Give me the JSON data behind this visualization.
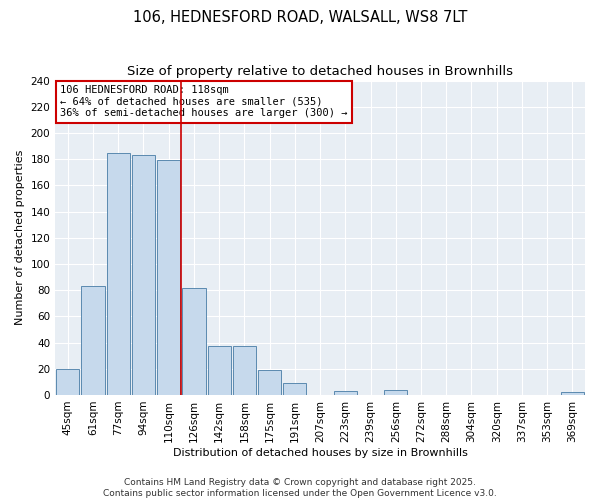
{
  "title": "106, HEDNESFORD ROAD, WALSALL, WS8 7LT",
  "subtitle": "Size of property relative to detached houses in Brownhills",
  "xlabel": "Distribution of detached houses by size in Brownhills",
  "ylabel": "Number of detached properties",
  "bar_labels": [
    "45sqm",
    "61sqm",
    "77sqm",
    "94sqm",
    "110sqm",
    "126sqm",
    "142sqm",
    "158sqm",
    "175sqm",
    "191sqm",
    "207sqm",
    "223sqm",
    "239sqm",
    "256sqm",
    "272sqm",
    "288sqm",
    "304sqm",
    "320sqm",
    "337sqm",
    "353sqm",
    "369sqm"
  ],
  "bar_values": [
    20,
    83,
    185,
    183,
    179,
    82,
    37,
    37,
    19,
    9,
    0,
    3,
    0,
    4,
    0,
    0,
    0,
    0,
    0,
    0,
    2
  ],
  "bar_color": "#c6d9ec",
  "bar_edgecolor": "#5b8ab0",
  "vline_x_index": 4.5,
  "vline_color": "#cc0000",
  "ylim": [
    0,
    240
  ],
  "yticks": [
    0,
    20,
    40,
    60,
    80,
    100,
    120,
    140,
    160,
    180,
    200,
    220,
    240
  ],
  "annotation_box_color": "#cc0000",
  "annotation_lines": [
    "106 HEDNESFORD ROAD: 118sqm",
    "← 64% of detached houses are smaller (535)",
    "36% of semi-detached houses are larger (300) →"
  ],
  "footer_lines": [
    "Contains HM Land Registry data © Crown copyright and database right 2025.",
    "Contains public sector information licensed under the Open Government Licence v3.0."
  ],
  "figure_bg": "#ffffff",
  "plot_bg": "#e8eef4",
  "grid_color": "#ffffff",
  "title_fontsize": 10.5,
  "subtitle_fontsize": 9.5,
  "axis_label_fontsize": 8,
  "tick_fontsize": 7.5,
  "footer_fontsize": 6.5,
  "annotation_fontsize": 7.5
}
